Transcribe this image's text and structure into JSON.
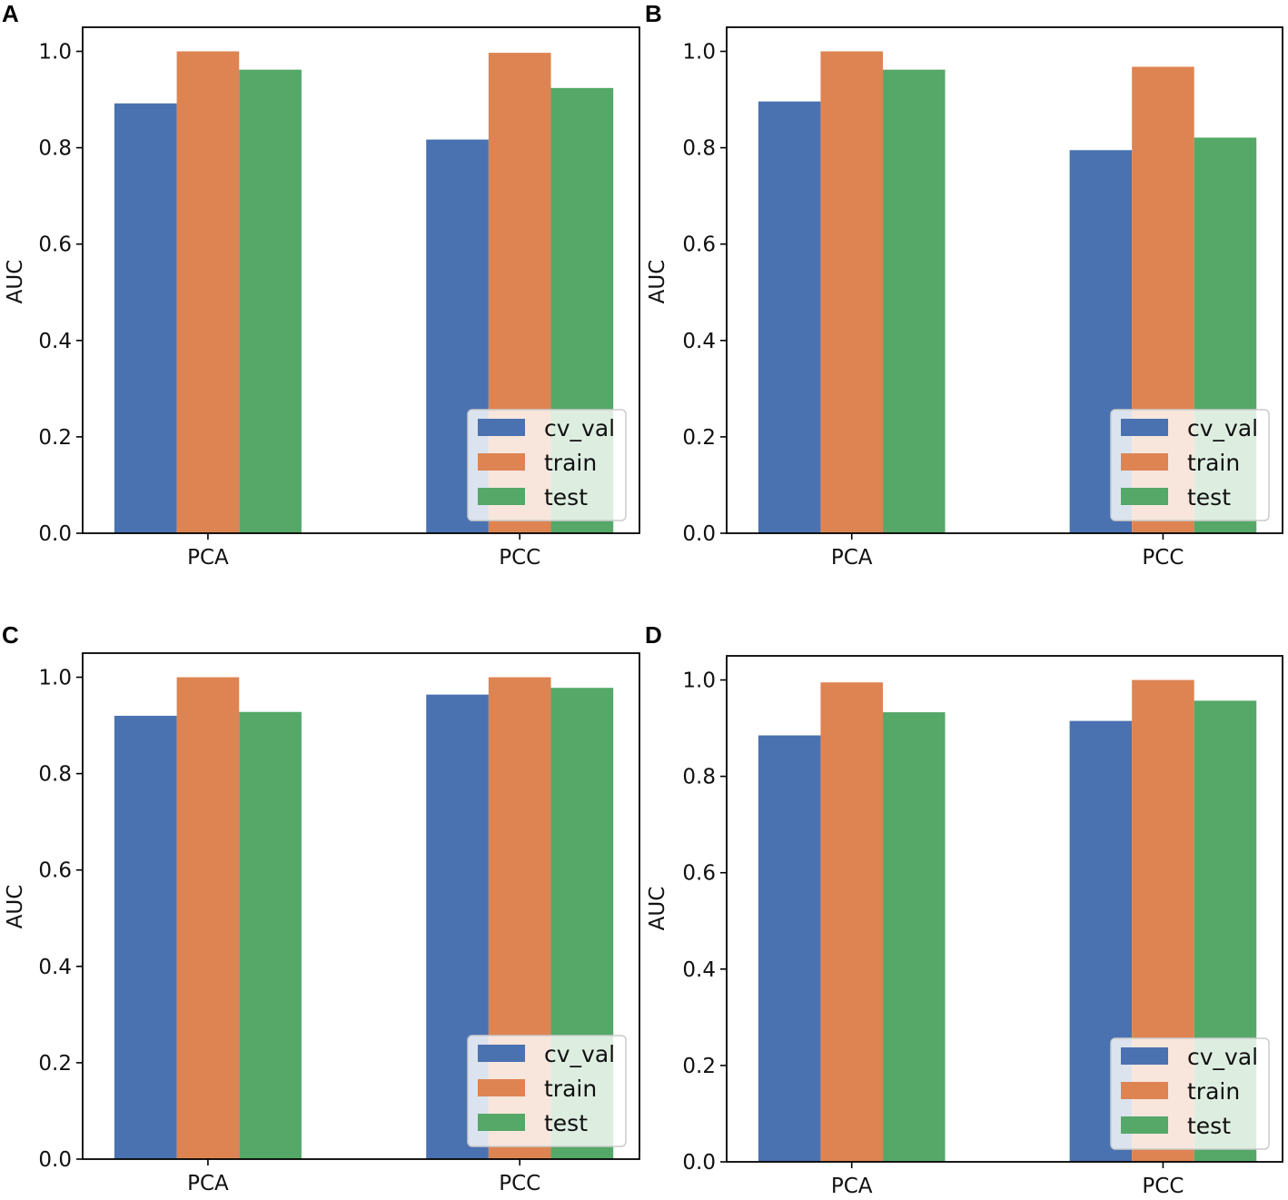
{
  "chart_data": [
    {
      "panel": "A",
      "type": "bar",
      "ylabel": "AUC",
      "ylim": [
        0,
        1.05
      ],
      "yticks": [
        "0.0",
        "0.2",
        "0.4",
        "0.6",
        "0.8",
        "1.0"
      ],
      "categories": [
        "PCA",
        "PCC"
      ],
      "series": [
        {
          "name": "cv_val",
          "values": [
            0.892,
            0.817
          ]
        },
        {
          "name": "train",
          "values": [
            1.0,
            0.997
          ]
        },
        {
          "name": "test",
          "values": [
            0.962,
            0.924
          ]
        }
      ],
      "legend_position": "lower-right"
    },
    {
      "panel": "B",
      "type": "bar",
      "ylabel": "AUC",
      "ylim": [
        0,
        1.05
      ],
      "yticks": [
        "0.0",
        "0.2",
        "0.4",
        "0.6",
        "0.8",
        "1.0"
      ],
      "categories": [
        "PCA",
        "PCC"
      ],
      "series": [
        {
          "name": "cv_val",
          "values": [
            0.896,
            0.795
          ]
        },
        {
          "name": "train",
          "values": [
            1.0,
            0.968
          ]
        },
        {
          "name": "test",
          "values": [
            0.962,
            0.821
          ]
        }
      ],
      "legend_position": "lower-right"
    },
    {
      "panel": "C",
      "type": "bar",
      "ylabel": "AUC",
      "ylim": [
        0,
        1.05
      ],
      "yticks": [
        "0.0",
        "0.2",
        "0.4",
        "0.6",
        "0.8",
        "1.0"
      ],
      "categories": [
        "PCA",
        "PCC"
      ],
      "series": [
        {
          "name": "cv_val",
          "values": [
            0.92,
            0.964
          ]
        },
        {
          "name": "train",
          "values": [
            1.0,
            1.0
          ]
        },
        {
          "name": "test",
          "values": [
            0.928,
            0.978
          ]
        }
      ],
      "legend_position": "lower-right"
    },
    {
      "panel": "D",
      "type": "bar",
      "ylabel": "AUC",
      "ylim": [
        0,
        1.05
      ],
      "yticks": [
        "0.0",
        "0.2",
        "0.4",
        "0.6",
        "0.8",
        "1.0"
      ],
      "categories": [
        "PCA",
        "PCC"
      ],
      "series": [
        {
          "name": "cv_val",
          "values": [
            0.885,
            0.915
          ]
        },
        {
          "name": "train",
          "values": [
            0.995,
            1.0
          ]
        },
        {
          "name": "test",
          "values": [
            0.933,
            0.957
          ]
        }
      ],
      "legend_position": "lower-right"
    }
  ],
  "colors": {
    "cv_val": "#4a72b0",
    "train": "#dd8452",
    "test": "#55a868"
  }
}
